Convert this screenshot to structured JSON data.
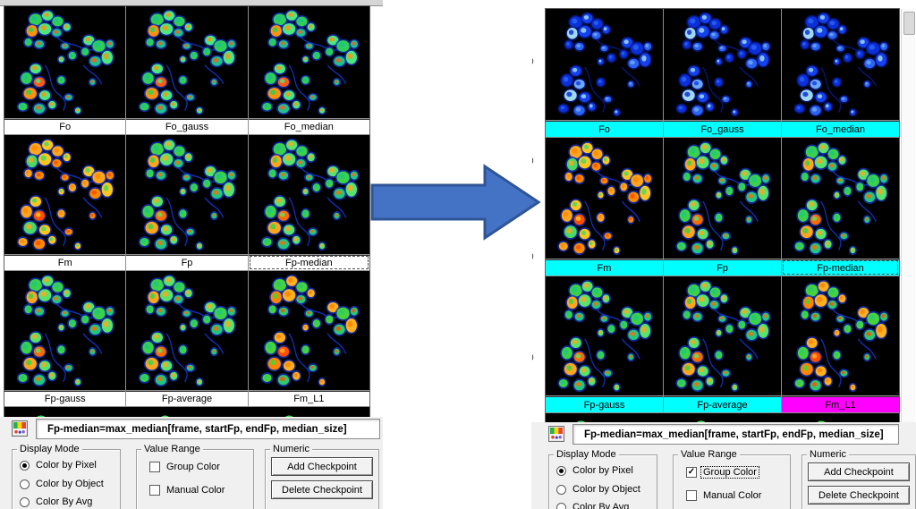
{
  "arrow": {
    "fill": "#4472c4",
    "stroke": "#2e5596"
  },
  "palettes": {
    "green": {
      "colors": [
        "#2fd052",
        "#4ce87e",
        "#1fbf8f",
        "#ff9110",
        "#ff5a14"
      ],
      "fringe": "#1433c8"
    },
    "mixed": {
      "colors": [
        "#3bd148",
        "#59e36a",
        "#22c77d",
        "#ffa51e",
        "#ff6a00"
      ],
      "fringe": "#1433c8"
    },
    "mixed2": {
      "colors": [
        "#46d43a",
        "#ffb020",
        "#2fc96a",
        "#ff8400",
        "#ff4d00"
      ],
      "fringe": "#1433c8"
    },
    "warm": {
      "colors": [
        "#ffa51e",
        "#ffc51e",
        "#ff8a00",
        "#49d964",
        "#ff4d00"
      ],
      "fringe": "#1433c8"
    },
    "blue": {
      "colors": [
        "#0b2fd9",
        "#1440ee",
        "#2b63f2",
        "#9fd9ef",
        "#6fa8f5"
      ],
      "fringe": "#071a8c"
    }
  },
  "panels": [
    {
      "id": "left",
      "top_strip": true,
      "cells": [
        {
          "label": "Fo",
          "palette": "green",
          "label_bg": "#ffffff",
          "selected": false
        },
        {
          "label": "Fo_gauss",
          "palette": "green",
          "label_bg": "#ffffff",
          "selected": false
        },
        {
          "label": "Fo_median",
          "palette": "green",
          "label_bg": "#ffffff",
          "selected": false
        },
        {
          "label": "Fm",
          "palette": "warm",
          "label_bg": "#ffffff",
          "selected": false
        },
        {
          "label": "Fp",
          "palette": "mixed",
          "label_bg": "#ffffff",
          "selected": false
        },
        {
          "label": "Fp-median",
          "palette": "mixed",
          "label_bg": "#ffffff",
          "selected": true
        },
        {
          "label": "Fp-gauss",
          "palette": "mixed",
          "label_bg": "#ffffff",
          "selected": false
        },
        {
          "label": "Fp-average",
          "palette": "mixed",
          "label_bg": "#ffffff",
          "selected": false
        },
        {
          "label": "Fm_L1",
          "palette": "mixed2",
          "label_bg": "#ffffff",
          "selected": false
        }
      ],
      "toolbar": {
        "icon_name": "image-thumbnail-icon",
        "formula": "Fp-median=max_median[frame, startFp, endFp, median_size]",
        "display_mode": {
          "title": "Display Mode",
          "options": [
            {
              "label": "Color by Pixel",
              "selected": true
            },
            {
              "label": "Color by Object",
              "selected": false
            },
            {
              "label": "Color By Avg",
              "selected": false
            }
          ]
        },
        "value_range": {
          "title": "Value Range",
          "options": [
            {
              "label": "Group Color",
              "checked": false,
              "focused": false
            },
            {
              "label": "Manual Color",
              "checked": false,
              "focused": false
            }
          ]
        },
        "numeric": {
          "title": "Numeric",
          "buttons": [
            {
              "label": "Add Checkpoint"
            },
            {
              "label": "Delete Checkpoint"
            }
          ]
        }
      },
      "edge_ticks": [],
      "scrollbar": false
    },
    {
      "id": "right",
      "top_strip": false,
      "cells": [
        {
          "label": "Fo",
          "palette": "blue",
          "label_bg": "#00ffff",
          "selected": false
        },
        {
          "label": "Fo_gauss",
          "palette": "blue",
          "label_bg": "#00ffff",
          "selected": false
        },
        {
          "label": "Fo_median",
          "palette": "blue",
          "label_bg": "#00ffff",
          "selected": false
        },
        {
          "label": "Fm",
          "palette": "warm",
          "label_bg": "#00ffff",
          "selected": false
        },
        {
          "label": "Fp",
          "palette": "mixed",
          "label_bg": "#00ffff",
          "selected": false
        },
        {
          "label": "Fp-median",
          "palette": "mixed",
          "label_bg": "#00ffff",
          "selected": true
        },
        {
          "label": "Fp-gauss",
          "palette": "mixed",
          "label_bg": "#00ffff",
          "selected": false
        },
        {
          "label": "Fp-average",
          "palette": "mixed",
          "label_bg": "#00ffff",
          "selected": false
        },
        {
          "label": "Fm_L1",
          "palette": "mixed2",
          "label_bg": "#ff00ff",
          "selected": false
        }
      ],
      "toolbar": {
        "icon_name": "image-thumbnail-icon",
        "formula": "Fp-median=max_median[frame, startFp, endFp, median_size]",
        "display_mode": {
          "title": "Display Mode",
          "options": [
            {
              "label": "Color by Pixel",
              "selected": true
            },
            {
              "label": "Color by Object",
              "selected": false
            },
            {
              "label": "Color By Avg",
              "selected": false
            }
          ]
        },
        "value_range": {
          "title": "Value Range",
          "options": [
            {
              "label": "Group Color",
              "checked": true,
              "focused": true
            },
            {
              "label": "Manual Color",
              "checked": false,
              "focused": false
            }
          ]
        },
        "numeric": {
          "title": "Numeric",
          "buttons": [
            {
              "label": "Add Checkpoint"
            },
            {
              "label": "Delete Checkpoint"
            }
          ]
        }
      },
      "edge_ticks": [
        "0",
        "0",
        "0",
        "0"
      ],
      "scrollbar": true
    }
  ]
}
